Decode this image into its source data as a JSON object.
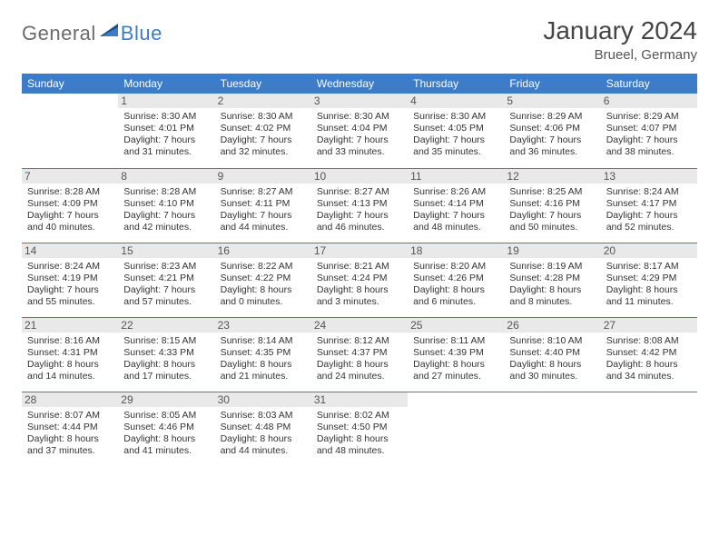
{
  "brand": {
    "part1": "General",
    "part2": "Blue"
  },
  "header": {
    "title": "January 2024",
    "location": "Brueel, Germany"
  },
  "colors": {
    "headerBlue": "#3d7cc9",
    "dayStripGray": "#e9e9e9",
    "textDark": "#333333",
    "brandGray": "#6b6b6b",
    "brandBlue": "#3d7cc9",
    "background": "#ffffff"
  },
  "weekdays": [
    "Sunday",
    "Monday",
    "Tuesday",
    "Wednesday",
    "Thursday",
    "Friday",
    "Saturday"
  ],
  "weeks": [
    [
      null,
      {
        "n": "1",
        "sr": "8:30 AM",
        "ss": "4:01 PM",
        "dl": "7 hours and 31 minutes."
      },
      {
        "n": "2",
        "sr": "8:30 AM",
        "ss": "4:02 PM",
        "dl": "7 hours and 32 minutes."
      },
      {
        "n": "3",
        "sr": "8:30 AM",
        "ss": "4:04 PM",
        "dl": "7 hours and 33 minutes."
      },
      {
        "n": "4",
        "sr": "8:30 AM",
        "ss": "4:05 PM",
        "dl": "7 hours and 35 minutes."
      },
      {
        "n": "5",
        "sr": "8:29 AM",
        "ss": "4:06 PM",
        "dl": "7 hours and 36 minutes."
      },
      {
        "n": "6",
        "sr": "8:29 AM",
        "ss": "4:07 PM",
        "dl": "7 hours and 38 minutes."
      }
    ],
    [
      {
        "n": "7",
        "sr": "8:28 AM",
        "ss": "4:09 PM",
        "dl": "7 hours and 40 minutes."
      },
      {
        "n": "8",
        "sr": "8:28 AM",
        "ss": "4:10 PM",
        "dl": "7 hours and 42 minutes."
      },
      {
        "n": "9",
        "sr": "8:27 AM",
        "ss": "4:11 PM",
        "dl": "7 hours and 44 minutes."
      },
      {
        "n": "10",
        "sr": "8:27 AM",
        "ss": "4:13 PM",
        "dl": "7 hours and 46 minutes."
      },
      {
        "n": "11",
        "sr": "8:26 AM",
        "ss": "4:14 PM",
        "dl": "7 hours and 48 minutes."
      },
      {
        "n": "12",
        "sr": "8:25 AM",
        "ss": "4:16 PM",
        "dl": "7 hours and 50 minutes."
      },
      {
        "n": "13",
        "sr": "8:24 AM",
        "ss": "4:17 PM",
        "dl": "7 hours and 52 minutes."
      }
    ],
    [
      {
        "n": "14",
        "sr": "8:24 AM",
        "ss": "4:19 PM",
        "dl": "7 hours and 55 minutes."
      },
      {
        "n": "15",
        "sr": "8:23 AM",
        "ss": "4:21 PM",
        "dl": "7 hours and 57 minutes."
      },
      {
        "n": "16",
        "sr": "8:22 AM",
        "ss": "4:22 PM",
        "dl": "8 hours and 0 minutes."
      },
      {
        "n": "17",
        "sr": "8:21 AM",
        "ss": "4:24 PM",
        "dl": "8 hours and 3 minutes."
      },
      {
        "n": "18",
        "sr": "8:20 AM",
        "ss": "4:26 PM",
        "dl": "8 hours and 6 minutes."
      },
      {
        "n": "19",
        "sr": "8:19 AM",
        "ss": "4:28 PM",
        "dl": "8 hours and 8 minutes."
      },
      {
        "n": "20",
        "sr": "8:17 AM",
        "ss": "4:29 PM",
        "dl": "8 hours and 11 minutes."
      }
    ],
    [
      {
        "n": "21",
        "sr": "8:16 AM",
        "ss": "4:31 PM",
        "dl": "8 hours and 14 minutes."
      },
      {
        "n": "22",
        "sr": "8:15 AM",
        "ss": "4:33 PM",
        "dl": "8 hours and 17 minutes."
      },
      {
        "n": "23",
        "sr": "8:14 AM",
        "ss": "4:35 PM",
        "dl": "8 hours and 21 minutes."
      },
      {
        "n": "24",
        "sr": "8:12 AM",
        "ss": "4:37 PM",
        "dl": "8 hours and 24 minutes."
      },
      {
        "n": "25",
        "sr": "8:11 AM",
        "ss": "4:39 PM",
        "dl": "8 hours and 27 minutes."
      },
      {
        "n": "26",
        "sr": "8:10 AM",
        "ss": "4:40 PM",
        "dl": "8 hours and 30 minutes."
      },
      {
        "n": "27",
        "sr": "8:08 AM",
        "ss": "4:42 PM",
        "dl": "8 hours and 34 minutes."
      }
    ],
    [
      {
        "n": "28",
        "sr": "8:07 AM",
        "ss": "4:44 PM",
        "dl": "8 hours and 37 minutes."
      },
      {
        "n": "29",
        "sr": "8:05 AM",
        "ss": "4:46 PM",
        "dl": "8 hours and 41 minutes."
      },
      {
        "n": "30",
        "sr": "8:03 AM",
        "ss": "4:48 PM",
        "dl": "8 hours and 44 minutes."
      },
      {
        "n": "31",
        "sr": "8:02 AM",
        "ss": "4:50 PM",
        "dl": "8 hours and 48 minutes."
      },
      null,
      null,
      null
    ]
  ],
  "labels": {
    "sunrise": "Sunrise:",
    "sunset": "Sunset:",
    "daylight": "Daylight:"
  }
}
